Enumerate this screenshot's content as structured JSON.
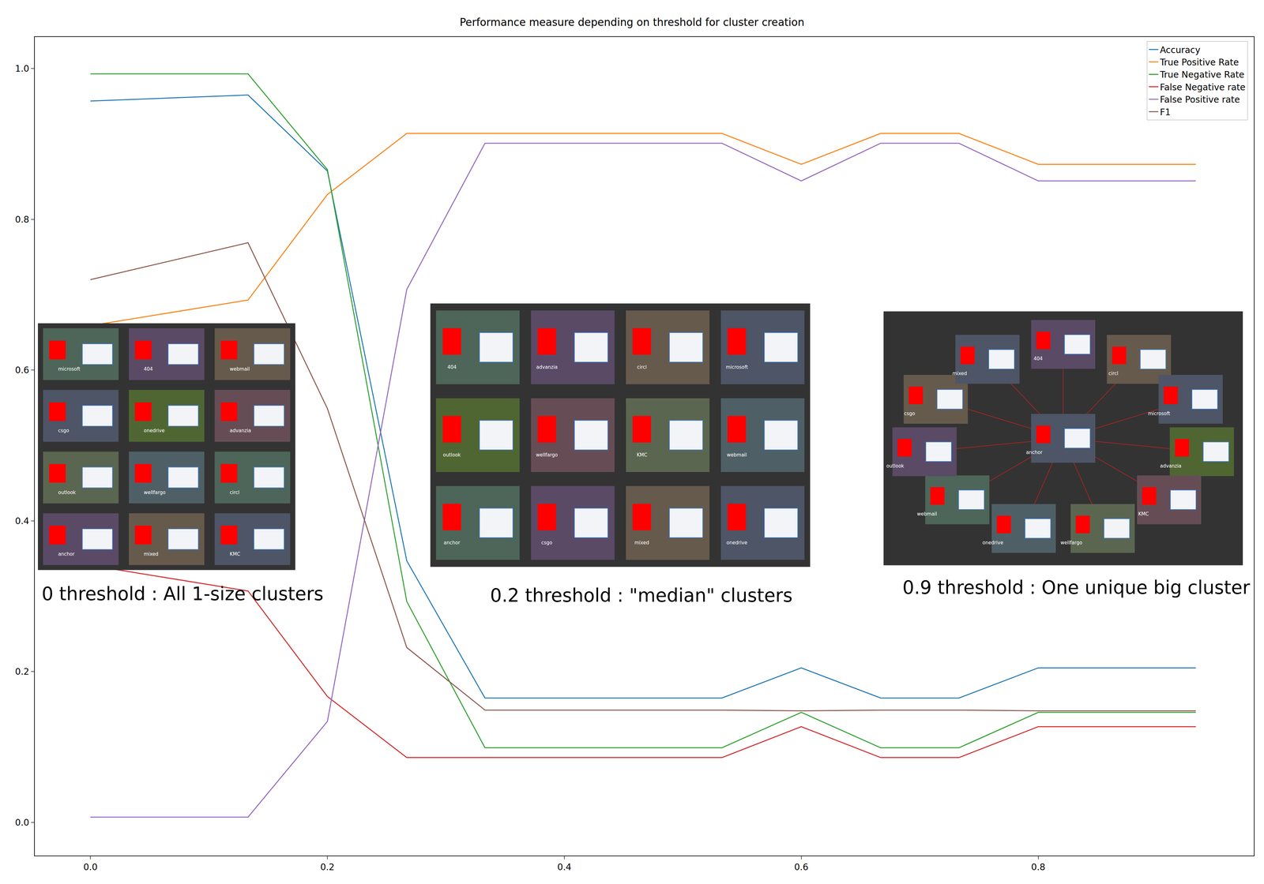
{
  "chart_data": {
    "type": "line",
    "title": "Performance measure depending on threshold for cluster creation",
    "x": [
      0,
      0.133,
      0.2,
      0.267,
      0.333,
      0.4,
      0.467,
      0.533,
      0.6,
      0.667,
      0.733,
      0.8,
      0.867,
      0.933
    ],
    "series": [
      {
        "name": "Accuracy",
        "color": "#1f77b4",
        "values": [
          0.957,
          0.965,
          0.864,
          0.347,
          0.165,
          0.165,
          0.165,
          0.165,
          0.205,
          0.165,
          0.165,
          0.205,
          0.205,
          0.205
        ]
      },
      {
        "name": "True Positive Rate",
        "color": "#ff7f0e",
        "values": [
          0.659,
          0.693,
          0.833,
          0.914,
          0.914,
          0.914,
          0.914,
          0.914,
          0.873,
          0.914,
          0.914,
          0.873,
          0.873,
          0.873
        ]
      },
      {
        "name": "True Negative Rate",
        "color": "#2ca02c",
        "values": [
          0.993,
          0.993,
          0.866,
          0.293,
          0.099,
          0.099,
          0.099,
          0.099,
          0.146,
          0.099,
          0.099,
          0.146,
          0.146,
          0.146
        ]
      },
      {
        "name": "False Negative rate",
        "color": "#d62728",
        "values": [
          0.341,
          0.307,
          0.167,
          0.086,
          0.086,
          0.086,
          0.086,
          0.086,
          0.127,
          0.086,
          0.086,
          0.127,
          0.127,
          0.127
        ]
      },
      {
        "name": "False Positive rate",
        "color": "#9467bd",
        "values": [
          0.007,
          0.007,
          0.134,
          0.707,
          0.901,
          0.901,
          0.901,
          0.901,
          0.851,
          0.901,
          0.901,
          0.851,
          0.851,
          0.851
        ]
      },
      {
        "name": "F1",
        "color": "#8c564b",
        "values": [
          0.72,
          0.769,
          0.549,
          0.232,
          0.149,
          0.149,
          0.149,
          0.149,
          0.148,
          0.149,
          0.149,
          0.148,
          0.148,
          0.148
        ]
      }
    ],
    "xlim": [
      -0.047,
      0.982
    ],
    "ylim": [
      -0.044,
      1.042
    ],
    "xticks": [
      {
        "value": 0,
        "label": "0.0"
      },
      {
        "value": 0.2,
        "label": "0.2"
      },
      {
        "value": 0.4,
        "label": "0.4"
      },
      {
        "value": 0.6,
        "label": "0.6"
      },
      {
        "value": 0.8,
        "label": "0.8"
      }
    ],
    "yticks": [
      {
        "value": 0,
        "label": "0.0"
      },
      {
        "value": 0.2,
        "label": "0.2"
      },
      {
        "value": 0.4,
        "label": "0.4"
      },
      {
        "value": 0.6,
        "label": "0.6"
      },
      {
        "value": 0.8,
        "label": "0.8"
      },
      {
        "value": 1,
        "label": "1.0"
      }
    ],
    "legend": "upper right",
    "grid": false,
    "annotations": [
      {
        "text": "0 threshold : All 1-size clusters",
        "clusters": [
          "microsoft",
          "404",
          "webmail",
          "csgo",
          "onedrive",
          "advanzia",
          "outlook",
          "wellfargo",
          "circl",
          "anchor",
          "mixed",
          "KMC"
        ]
      },
      {
        "text": "0.2 threshold : \"median\" clusters",
        "clusters": [
          "404",
          "advanzia",
          "circl",
          "microsoft",
          "outlook",
          "wellfargo",
          "KMC",
          "webmail",
          "anchor",
          "csgo",
          "mixed",
          "onedrive"
        ]
      },
      {
        "text": "0.9 threshold : One unique big cluster",
        "clusters": [
          "anchor",
          "404",
          "circl",
          "microsoft",
          "advanzia",
          "KMC",
          "wellfargo",
          "onedrive",
          "webmail",
          "outlook",
          "csgo",
          "mixed"
        ]
      }
    ]
  }
}
